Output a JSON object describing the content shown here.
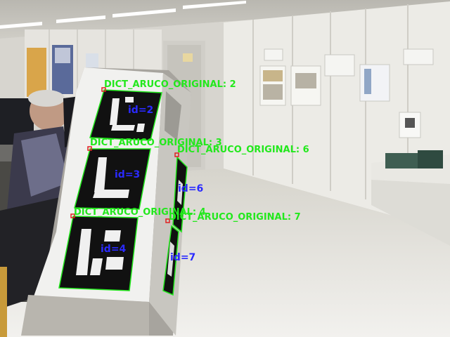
{
  "markers": [
    {
      "dict_label": "DICT_ARUCO_ORIGINAL: 2",
      "id_label": "id=2"
    },
    {
      "dict_label": "DICT_ARUCO_ORIGINAL: 3",
      "id_label": "id=3"
    },
    {
      "dict_label": "DICT_ARUCO_ORIGINAL: 4",
      "id_label": "id=4"
    },
    {
      "dict_label": "DICT_ARUCO_ORIGINAL: 6",
      "id_label": "id=6"
    },
    {
      "dict_label": "DICT_ARUCO_ORIGINAL: 7",
      "id_label": "id=7"
    }
  ],
  "colors": {
    "detection_outline": "#22e81c",
    "dict_label": "#22e81c",
    "id_label": "#2a2aff",
    "corner_marker": "#e02020"
  }
}
